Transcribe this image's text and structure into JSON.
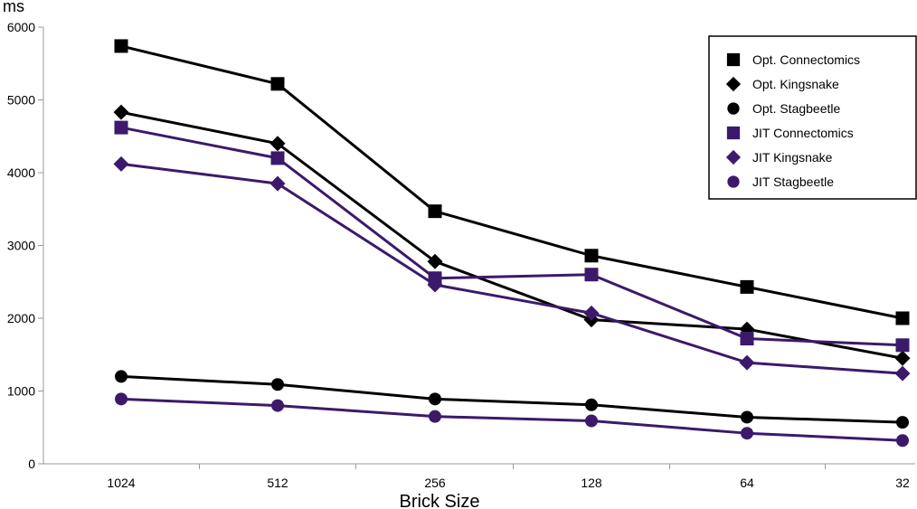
{
  "chart_data": {
    "type": "line",
    "title": "",
    "xlabel": "Brick Size",
    "ylabel": "ms",
    "categories": [
      "1024",
      "512",
      "256",
      "128",
      "64",
      "32"
    ],
    "ylim": [
      0,
      6000
    ],
    "yticks": [
      "0",
      "1000",
      "2000",
      "3000",
      "4000",
      "5000",
      "6000"
    ],
    "grid": false,
    "legend_position": "top-right",
    "colors": {
      "opt": "#000000",
      "jit": "#3b1a6b"
    },
    "series": [
      {
        "name": "Opt. Connectomics",
        "marker": "square",
        "color": "#000000",
        "values": [
          5740,
          5220,
          3470,
          2860,
          2430,
          2000
        ]
      },
      {
        "name": "Opt. Kingsnake",
        "marker": "diamond",
        "color": "#000000",
        "values": [
          4830,
          4400,
          2780,
          1980,
          1850,
          1450
        ]
      },
      {
        "name": "Opt. Stagbeetle",
        "marker": "circle",
        "color": "#000000",
        "values": [
          1200,
          1090,
          890,
          810,
          640,
          570
        ]
      },
      {
        "name": "JIT Connectomics",
        "marker": "square",
        "color": "#3b1a6b",
        "values": [
          4620,
          4200,
          2550,
          2600,
          1720,
          1630
        ]
      },
      {
        "name": "JIT Kingsnake",
        "marker": "diamond",
        "color": "#3b1a6b",
        "values": [
          4120,
          3850,
          2460,
          2070,
          1390,
          1240
        ]
      },
      {
        "name": "JIT Stagbeetle",
        "marker": "circle",
        "color": "#3b1a6b",
        "values": [
          890,
          800,
          650,
          590,
          420,
          320
        ]
      }
    ]
  }
}
